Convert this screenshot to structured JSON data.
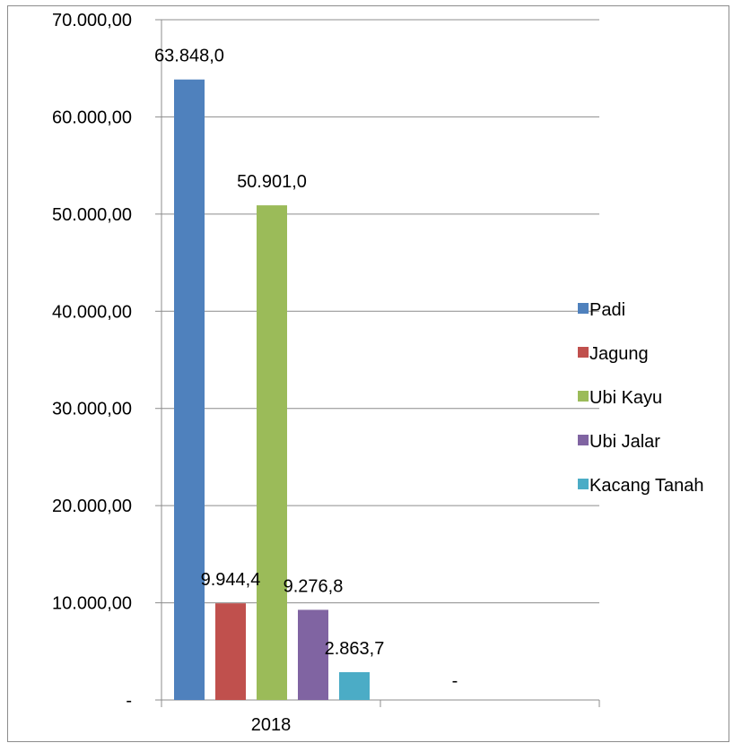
{
  "chart_data": {
    "type": "bar",
    "categories": [
      "2018"
    ],
    "series": [
      {
        "name": "Padi",
        "values": [
          63848.0
        ],
        "label": "63.848,0",
        "color": "#4f81bd"
      },
      {
        "name": "Jagung",
        "values": [
          9944.4
        ],
        "label": "9.944,4",
        "color": "#c0504d"
      },
      {
        "name": "Ubi Kayu",
        "values": [
          50901.0
        ],
        "label": "50.901,0",
        "color": "#9bbb59"
      },
      {
        "name": "Ubi Jalar",
        "values": [
          9276.8
        ],
        "label": "9.276,8",
        "color": "#8064a2"
      },
      {
        "name": "Kacang Tanah",
        "values": [
          2863.7
        ],
        "label": "2.863,7",
        "color": "#4bacc6"
      }
    ],
    "empty_category_label": "-",
    "ylim": [
      0,
      70000
    ],
    "y_ticks": [
      {
        "value": 0,
        "label": "-"
      },
      {
        "value": 10000,
        "label": "10.000,00"
      },
      {
        "value": 20000,
        "label": "20.000,00"
      },
      {
        "value": 30000,
        "label": "30.000,00"
      },
      {
        "value": 40000,
        "label": "40.000,00"
      },
      {
        "value": 50000,
        "label": "50.000,00"
      },
      {
        "value": 60000,
        "label": "60.000,00"
      },
      {
        "value": 70000,
        "label": "70.000,00"
      }
    ],
    "title": "",
    "xlabel": "",
    "ylabel": "",
    "grid": true,
    "legend_position": "right"
  }
}
